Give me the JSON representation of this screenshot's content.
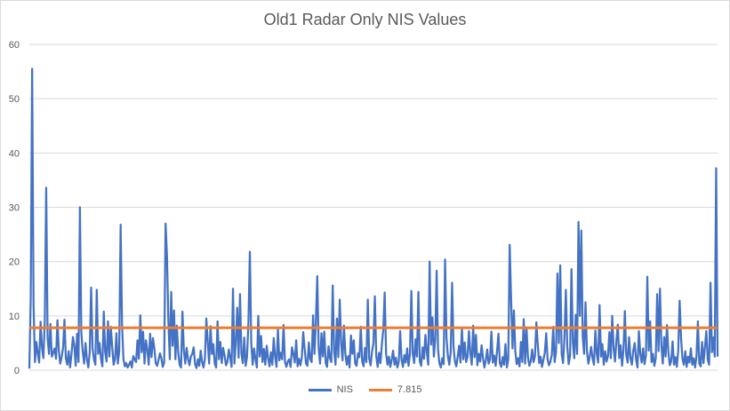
{
  "chart_data": {
    "type": "line",
    "title": "Old1 Radar Only NIS Values",
    "xlabel": "",
    "ylabel": "",
    "ylim": [
      0,
      60
    ],
    "yticks": [
      "0",
      "10",
      "20",
      "30",
      "40",
      "50",
      "60"
    ],
    "grid": true,
    "legend_position": "bottom",
    "series": [
      {
        "name": "NIS",
        "color": "#4472C4",
        "values": [
          0.3,
          13.5,
          55.5,
          12.0,
          1.5,
          5.2,
          3.1,
          1.4,
          8.9,
          4.2,
          2.2,
          9.1,
          33.6,
          6.0,
          3.0,
          8.5,
          2.5,
          3.2,
          4.0,
          2.1,
          9.2,
          3.6,
          1.2,
          2.4,
          4.1,
          9.3,
          2.2,
          1.0,
          3.5,
          0.5,
          2.9,
          6.1,
          4.6,
          0.8,
          6.7,
          1.5,
          30.0,
          7.0,
          3.5,
          1.2,
          5.0,
          2.0,
          0.5,
          3.3,
          15.2,
          4.0,
          2.0,
          1.0,
          14.8,
          3.0,
          5.0,
          2.1,
          0.7,
          10.8,
          3.3,
          1.6,
          9.0,
          2.5,
          8.0,
          4.3,
          1.0,
          2.0,
          6.8,
          1.2,
          3.5,
          26.8,
          8.5,
          2.0,
          0.7,
          1.3,
          0.5,
          1.0,
          1.6,
          0.5,
          2.6,
          2.0,
          1.5,
          5.5,
          2.1,
          10.1,
          3.3,
          7.1,
          1.2,
          5.5,
          3.8,
          1.0,
          6.7,
          2.4,
          5.9,
          4.0,
          1.3,
          0.8,
          1.9,
          3.1,
          2.2,
          0.6,
          1.4,
          27.0,
          21.0,
          9.0,
          2.0,
          14.4,
          4.5,
          11.0,
          2.0,
          8.2,
          3.3,
          1.0,
          0.5,
          10.8,
          3.7,
          1.2,
          4.1,
          2.0,
          0.9,
          2.5,
          3.0,
          4.2,
          1.1,
          0.4,
          2.0,
          0.8,
          3.6,
          1.5,
          0.5,
          2.1,
          9.5,
          5.3,
          1.2,
          8.1,
          3.0,
          4.8,
          1.2,
          0.5,
          9.0,
          2.0,
          5.2,
          1.3,
          4.1,
          2.7,
          0.9,
          1.5,
          3.8,
          2.3,
          0.6,
          15.0,
          1.2,
          5.0,
          11.5,
          2.3,
          14.0,
          3.1,
          1.3,
          6.0,
          0.8,
          2.5,
          8.9,
          21.8,
          5.0,
          1.0,
          4.0,
          2.0,
          0.5,
          10.0,
          2.5,
          6.3,
          1.5,
          3.9,
          1.0,
          4.5,
          2.2,
          0.7,
          3.3,
          1.0,
          5.9,
          2.4,
          0.6,
          7.5,
          1.8,
          3.2,
          2.0,
          8.3,
          1.5,
          0.6,
          1.6,
          2.0,
          0.6,
          4.2,
          3.0,
          1.4,
          5.5,
          0.7,
          2.1,
          0.9,
          2.3,
          7.0,
          4.0,
          1.2,
          0.8,
          5.1,
          2.0,
          1.5,
          10.1,
          3.0,
          9.0,
          17.3,
          4.0,
          1.2,
          6.8,
          2.5,
          7.1,
          1.3,
          0.6,
          4.4,
          2.2,
          1.5,
          15.6,
          3.5,
          1.0,
          9.5,
          2.4,
          13.0,
          5.0,
          1.8,
          8.2,
          3.0,
          1.0,
          2.6,
          0.5,
          6.4,
          3.0,
          5.5,
          1.2,
          0.8,
          3.1,
          2.4,
          8.0,
          1.6,
          0.7,
          4.1,
          1.5,
          13.0,
          2.1,
          0.9,
          3.4,
          5.0,
          13.6,
          2.6,
          0.6,
          3.2,
          1.3,
          4.8,
          7.5,
          14.3,
          3.0,
          1.0,
          2.5,
          0.6,
          1.9,
          3.6,
          1.0,
          2.3,
          0.5,
          1.5,
          7.2,
          2.0,
          0.6,
          2.8,
          1.4,
          4.0,
          0.8,
          3.0,
          14.6,
          3.0,
          1.3,
          5.7,
          2.5,
          14.4,
          1.6,
          0.8,
          4.2,
          2.1,
          6.5,
          3.3,
          1.0,
          20.0,
          4.7,
          9.7,
          2.5,
          5.6,
          18.3,
          3.8,
          1.2,
          0.5,
          2.2,
          1.1,
          20.4,
          6.0,
          2.6,
          1.0,
          3.3,
          16.1,
          4.4,
          1.6,
          0.7,
          2.5,
          4.5,
          1.4,
          7.8,
          2.0,
          5.1,
          1.5,
          2.5,
          7.2,
          3.1,
          1.0,
          8.2,
          2.4,
          6.5,
          0.9,
          3.0,
          1.6,
          4.6,
          2.2,
          0.5,
          1.8,
          3.8,
          1.2,
          2.0,
          7.1,
          1.4,
          2.7,
          0.8,
          3.5,
          6.7,
          1.3,
          0.6,
          2.4,
          1.0,
          4.8,
          0.5,
          2.0,
          23.1,
          13.2,
          4.0,
          11.0,
          3.5,
          1.1,
          2.2,
          0.7,
          5.2,
          1.5,
          9.4,
          1.2,
          7.7,
          2.4,
          0.8,
          1.6,
          3.8,
          1.5,
          2.6,
          8.8,
          4.7,
          1.3,
          2.5,
          0.6,
          1.9,
          3.2,
          6.8,
          2.0,
          0.9,
          1.6,
          2.8,
          8.0,
          1.5,
          3.4,
          17.8,
          5.0,
          19.3,
          3.0,
          1.3,
          6.0,
          14.8,
          4.4,
          1.1,
          2.7,
          18.6,
          5.0,
          2.2,
          10.2,
          3.0,
          27.3,
          10.0,
          25.7,
          6.2,
          3.0,
          12.5,
          3.6,
          1.2,
          2.5,
          4.3,
          2.2,
          1.0,
          7.3,
          3.0,
          1.4,
          12.0,
          2.5,
          4.8,
          1.0,
          3.5,
          1.6,
          2.6,
          7.0,
          2.2,
          10.0,
          4.1,
          1.6,
          5.5,
          8.4,
          2.2,
          4.6,
          0.8,
          3.7,
          10.9,
          2.8,
          1.4,
          6.1,
          2.2,
          1.0,
          3.6,
          5.0,
          2.0,
          0.5,
          7.2,
          3.0,
          1.4,
          4.0,
          1.1,
          2.7,
          17.2,
          3.6,
          9.0,
          1.5,
          3.0,
          0.8,
          2.2,
          14.0,
          3.5,
          15.0,
          4.7,
          1.2,
          6.1,
          2.5,
          8.3,
          3.2,
          0.9,
          1.7,
          5.3,
          1.0,
          2.4,
          0.6,
          3.6,
          12.8,
          6.0,
          2.1,
          1.0,
          3.5,
          0.6,
          2.5,
          1.4,
          4.0,
          1.0,
          2.2,
          0.5,
          2.6,
          9.0,
          1.2,
          0.7,
          5.2,
          1.3,
          4.2,
          7.2,
          2.0,
          1.0,
          16.1,
          3.3,
          6.0,
          2.5,
          37.2,
          2.5
        ]
      },
      {
        "name": "7.815",
        "color": "#ED7D31",
        "constant": 7.815
      }
    ]
  }
}
